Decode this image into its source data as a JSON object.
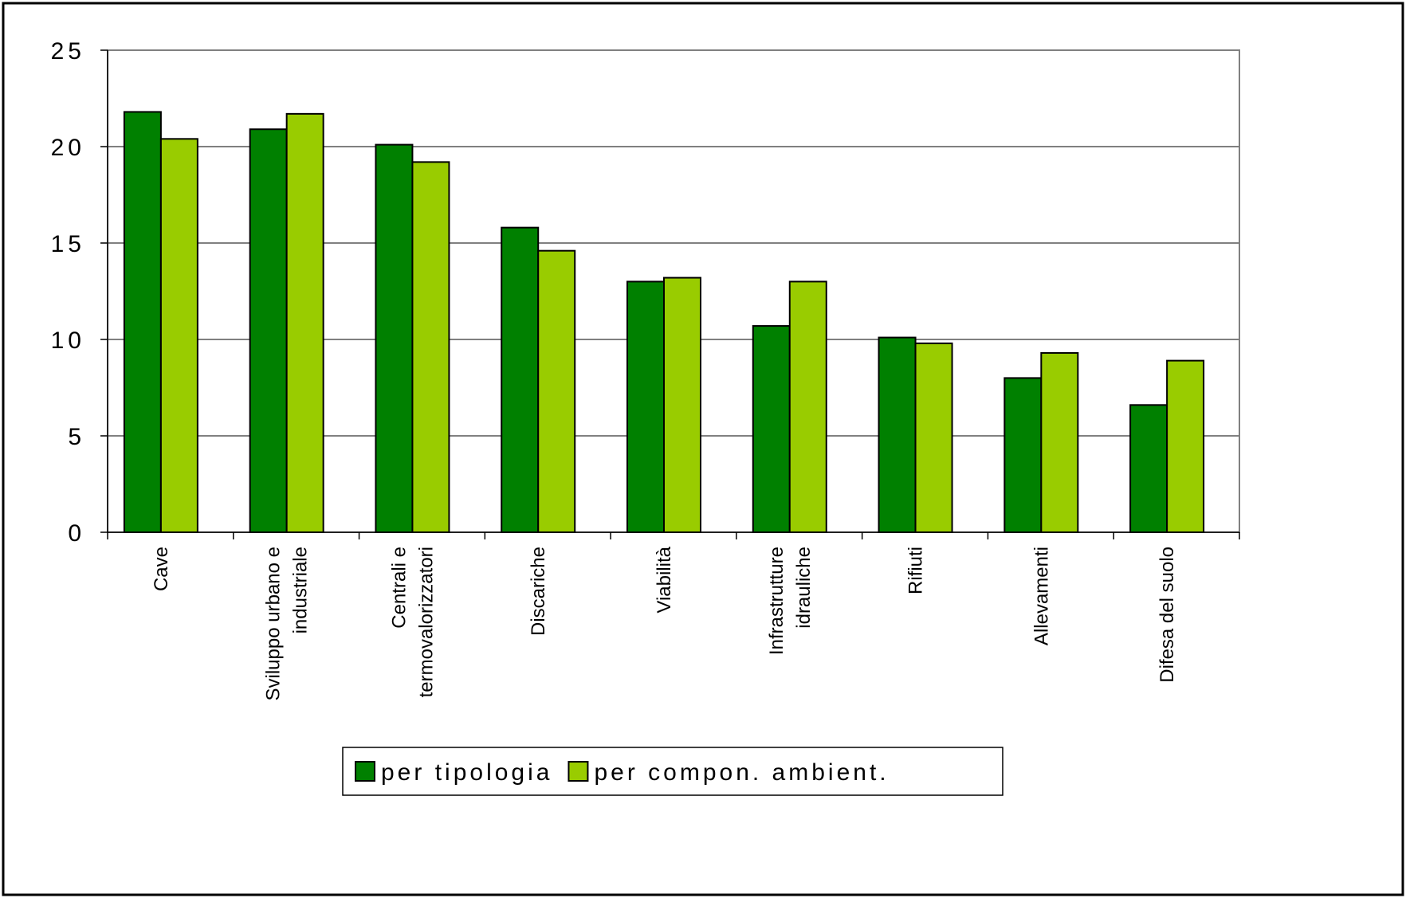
{
  "colors": {
    "series_1": "#008000",
    "series_2": "#99CC00",
    "gridline": "#000000",
    "plot_border": "#808080"
  },
  "chart_data": {
    "type": "bar",
    "title": "",
    "xlabel": "",
    "ylabel": "",
    "ylim": [
      0,
      25
    ],
    "yticks": [
      0,
      5,
      10,
      15,
      20,
      25
    ],
    "grid": true,
    "legend_position": "bottom-center",
    "categories": [
      [
        "Cave"
      ],
      [
        "Sviluppo urbano e",
        "industriale"
      ],
      [
        "Centrali e",
        "termovalorizzatori"
      ],
      [
        "Discariche"
      ],
      [
        "Viabilità"
      ],
      [
        "Infrastrutture",
        "idrauliche"
      ],
      [
        "Rifiuti"
      ],
      [
        "Allevamenti"
      ],
      [
        "Difesa del suolo"
      ]
    ],
    "series": [
      {
        "name": "per tipologia",
        "values": [
          21.8,
          20.9,
          20.1,
          15.8,
          13.0,
          10.7,
          10.1,
          8.0,
          6.6
        ]
      },
      {
        "name": "per compon. ambient.",
        "values": [
          20.4,
          21.7,
          19.2,
          14.6,
          13.2,
          13.0,
          9.8,
          9.3,
          8.9
        ]
      }
    ]
  }
}
